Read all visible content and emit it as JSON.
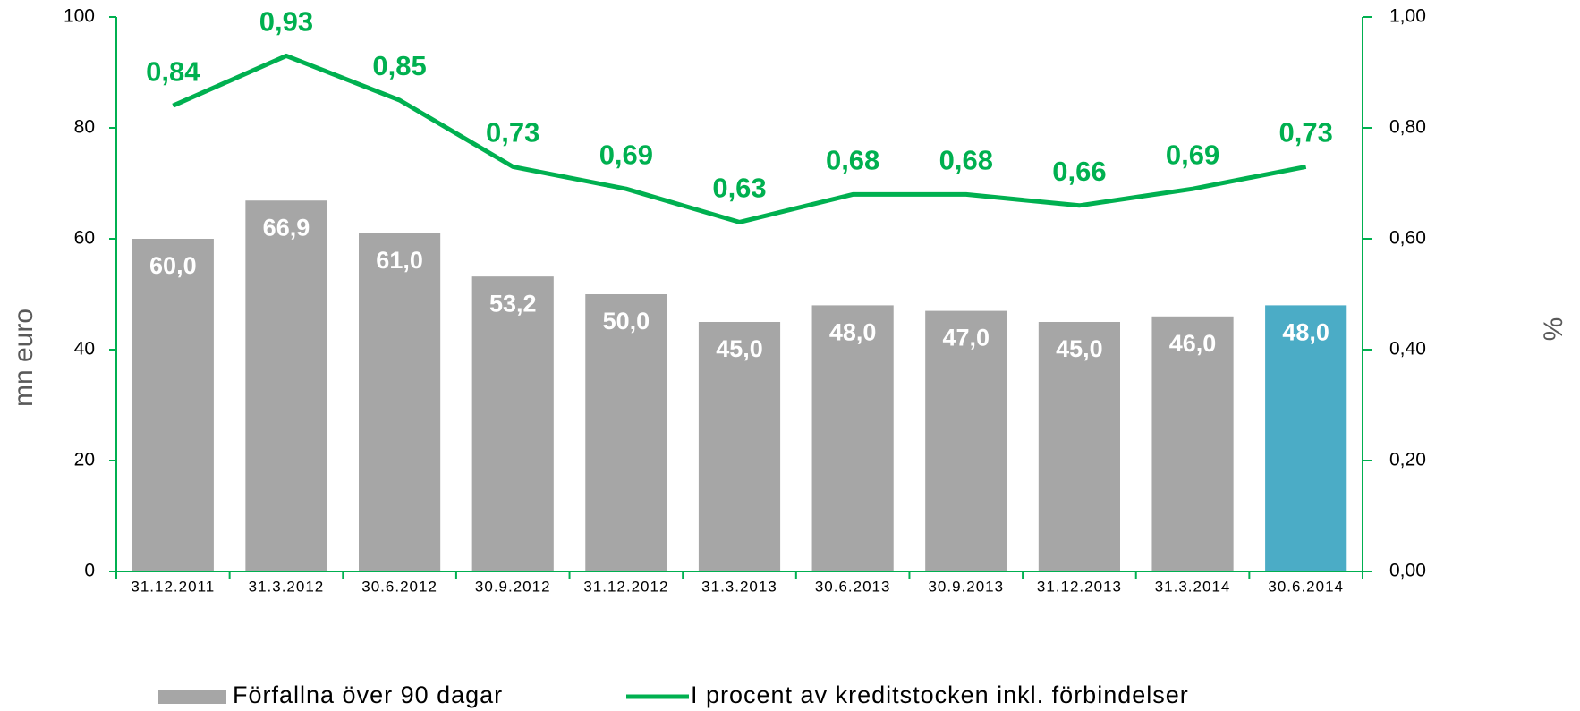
{
  "chart_data": {
    "type": "bar",
    "categories": [
      "31.12.2011",
      "31.3.2012",
      "30.6.2012",
      "30.9.2012",
      "31.12.2012",
      "31.3.2013",
      "30.6.2013",
      "30.9.2013",
      "31.12.2013",
      "31.3.2014",
      "30.6.2014"
    ],
    "series": [
      {
        "name": "Förfallna över 90 dagar",
        "type": "bar",
        "color": "#a6a6a6",
        "colors": [
          "#a6a6a6",
          "#a6a6a6",
          "#a6a6a6",
          "#a6a6a6",
          "#a6a6a6",
          "#a6a6a6",
          "#a6a6a6",
          "#a6a6a6",
          "#a6a6a6",
          "#a6a6a6",
          "#4bacc6"
        ],
        "values": [
          60.0,
          66.9,
          61.0,
          53.2,
          50.0,
          45.0,
          48.0,
          47.0,
          45.0,
          46.0,
          48.0
        ],
        "value_labels": [
          "60,0",
          "66,9",
          "61,0",
          "53,2",
          "50,0",
          "45,0",
          "48,0",
          "47,0",
          "45,0",
          "46,0",
          "48,0"
        ]
      },
      {
        "name": "I procent av kreditstocken inkl. förbindelser",
        "type": "line",
        "axis": "y2",
        "color": "#00b050",
        "values": [
          0.84,
          0.93,
          0.85,
          0.73,
          0.69,
          0.63,
          0.68,
          0.68,
          0.66,
          0.69,
          0.73
        ],
        "value_labels": [
          "0,84",
          "0,93",
          "0,85",
          "0,73",
          "0,69",
          "0,63",
          "0,68",
          "0,68",
          "0,66",
          "0,69",
          "0,73"
        ]
      }
    ],
    "ylabel": "mn euro",
    "y2label": "%",
    "ylim": [
      0,
      100
    ],
    "yticks": [
      0,
      20,
      40,
      60,
      80,
      100
    ],
    "y2lim": [
      0,
      1
    ],
    "y2ticks": [
      {
        "value": 0,
        "label": "0,00"
      },
      {
        "value": 0.2,
        "label": "0,20"
      },
      {
        "value": 0.4,
        "label": "0,40"
      },
      {
        "value": 0.6,
        "label": "0,60"
      },
      {
        "value": 0.8,
        "label": "0,80"
      },
      {
        "value": 1,
        "label": "1,00"
      }
    ],
    "axis_color": "#00b050",
    "legend": "bottom"
  }
}
